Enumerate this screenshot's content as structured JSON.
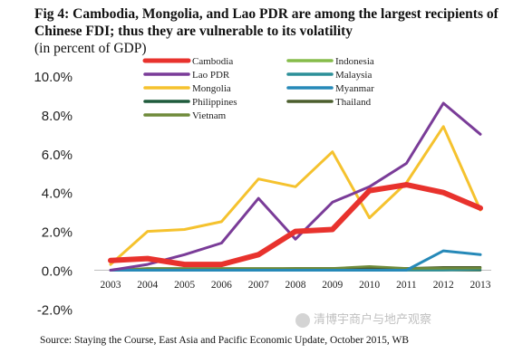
{
  "chart_data": {
    "type": "line",
    "title": "Fig 4: Cambodia, Mongolia, and Lao PDR are among the largest recipients of Chinese FDI; thus they are vulnerable to its volatility",
    "subtitle": "(in percent of GDP)",
    "x": [
      "2003",
      "2004",
      "2005",
      "2006",
      "2007",
      "2008",
      "2009",
      "2010",
      "2011",
      "2012",
      "2013"
    ],
    "ylim": [
      -2.0,
      10.0
    ],
    "yticks": [
      "10.0%",
      "8.0%",
      "6.0%",
      "4.0%",
      "2.0%",
      "0.0%",
      "-2.0%"
    ],
    "ytick_values": [
      10,
      8,
      6,
      4,
      2,
      0,
      -2
    ],
    "grid": false,
    "legend_position": "top-left",
    "series": [
      {
        "name": "Cambodia",
        "color": "#e8322d",
        "width": 6,
        "values": [
          0.5,
          0.6,
          0.3,
          0.3,
          0.8,
          2.0,
          2.1,
          4.1,
          4.4,
          4.0,
          3.2
        ]
      },
      {
        "name": "Indonesia",
        "color": "#86bc4a",
        "width": 2.5,
        "values": [
          0.0,
          0.05,
          0.05,
          0.05,
          0.05,
          0.05,
          0.05,
          0.1,
          0.1,
          0.1,
          0.15
        ]
      },
      {
        "name": "Lao PDR",
        "color": "#7a3c98",
        "width": 3,
        "values": [
          0.0,
          0.3,
          0.8,
          1.4,
          3.7,
          1.6,
          3.5,
          4.3,
          5.5,
          8.6,
          7.0
        ]
      },
      {
        "name": "Malaysia",
        "color": "#2c8f98",
        "width": 2.5,
        "values": [
          0.0,
          0.0,
          0.0,
          0.0,
          0.0,
          0.0,
          0.0,
          0.0,
          0.0,
          0.0,
          0.05
        ]
      },
      {
        "name": "Mongolia",
        "color": "#f5c22e",
        "width": 3,
        "values": [
          0.3,
          2.0,
          2.1,
          2.5,
          4.7,
          4.3,
          6.1,
          2.7,
          4.5,
          7.4,
          3.1
        ]
      },
      {
        "name": "Myanmar",
        "color": "#2689b8",
        "width": 3,
        "values": [
          0.0,
          0.0,
          0.0,
          0.0,
          0.0,
          0.0,
          0.0,
          0.0,
          0.0,
          1.0,
          0.8
        ]
      },
      {
        "name": "Philippines",
        "color": "#1f5b3c",
        "width": 2.5,
        "values": [
          0.0,
          0.0,
          0.0,
          0.0,
          0.0,
          0.0,
          0.0,
          0.0,
          0.0,
          0.0,
          0.0
        ]
      },
      {
        "name": "Thailand",
        "color": "#4b5e2d",
        "width": 2.5,
        "values": [
          0.0,
          0.05,
          0.05,
          0.05,
          0.05,
          0.1,
          0.1,
          0.1,
          0.1,
          0.15,
          0.15
        ]
      },
      {
        "name": "Vietnam",
        "color": "#6f8a3a",
        "width": 2.5,
        "values": [
          0.0,
          0.1,
          0.1,
          0.1,
          0.1,
          0.1,
          0.1,
          0.2,
          0.1,
          0.1,
          0.1
        ]
      }
    ]
  },
  "source": "Source: Staying the Course, East Asia and Pacific Economic Update, October 2015, WB",
  "watermark": "清博宇商户与地产观察"
}
